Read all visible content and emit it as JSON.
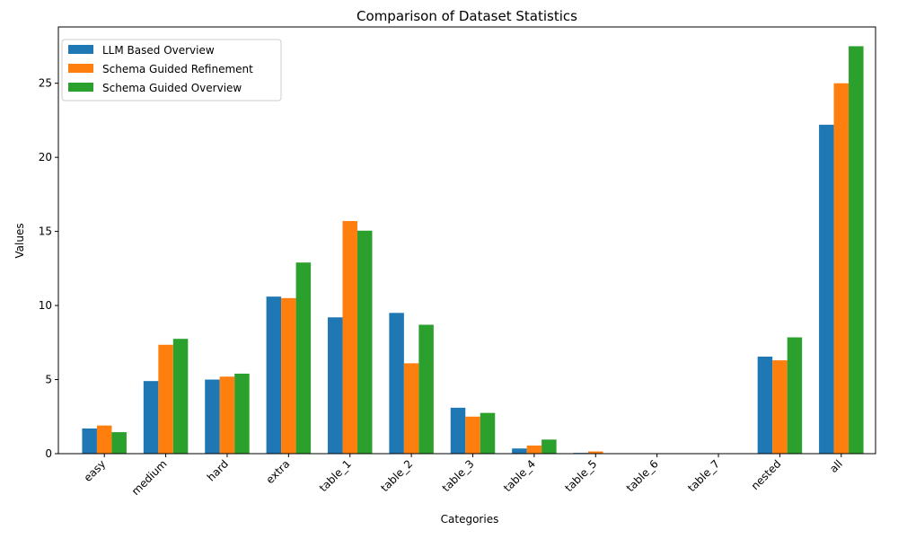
{
  "chart_data": {
    "type": "bar",
    "title": "Comparison of Dataset Statistics",
    "xlabel": "Categories",
    "ylabel": "Values",
    "ylim": [
      0,
      28.8
    ],
    "yticks": [
      0,
      5,
      10,
      15,
      20,
      25
    ],
    "grid": false,
    "legend_position": "top-left",
    "categories": [
      "easy",
      "medium",
      "hard",
      "extra",
      "table_1",
      "table_2",
      "table_3",
      "table_4",
      "table_5",
      "table_6",
      "table_7",
      "nested",
      "all"
    ],
    "series": [
      {
        "name": "LLM Based Overview",
        "color": "#1f77b4",
        "values": [
          1.7,
          4.9,
          5.0,
          10.6,
          9.2,
          9.5,
          3.1,
          0.35,
          0.05,
          0,
          0,
          6.55,
          22.2
        ]
      },
      {
        "name": "Schema Guided Refinement",
        "color": "#ff7f0e",
        "values": [
          1.9,
          7.35,
          5.2,
          10.5,
          15.7,
          6.1,
          2.5,
          0.55,
          0.15,
          0,
          0,
          6.3,
          25.0
        ]
      },
      {
        "name": "Schema Guided Overview",
        "color": "#2ca02c",
        "values": [
          1.45,
          7.75,
          5.4,
          12.9,
          15.05,
          8.7,
          2.75,
          0.95,
          0,
          0,
          0,
          7.85,
          27.5
        ]
      }
    ]
  }
}
